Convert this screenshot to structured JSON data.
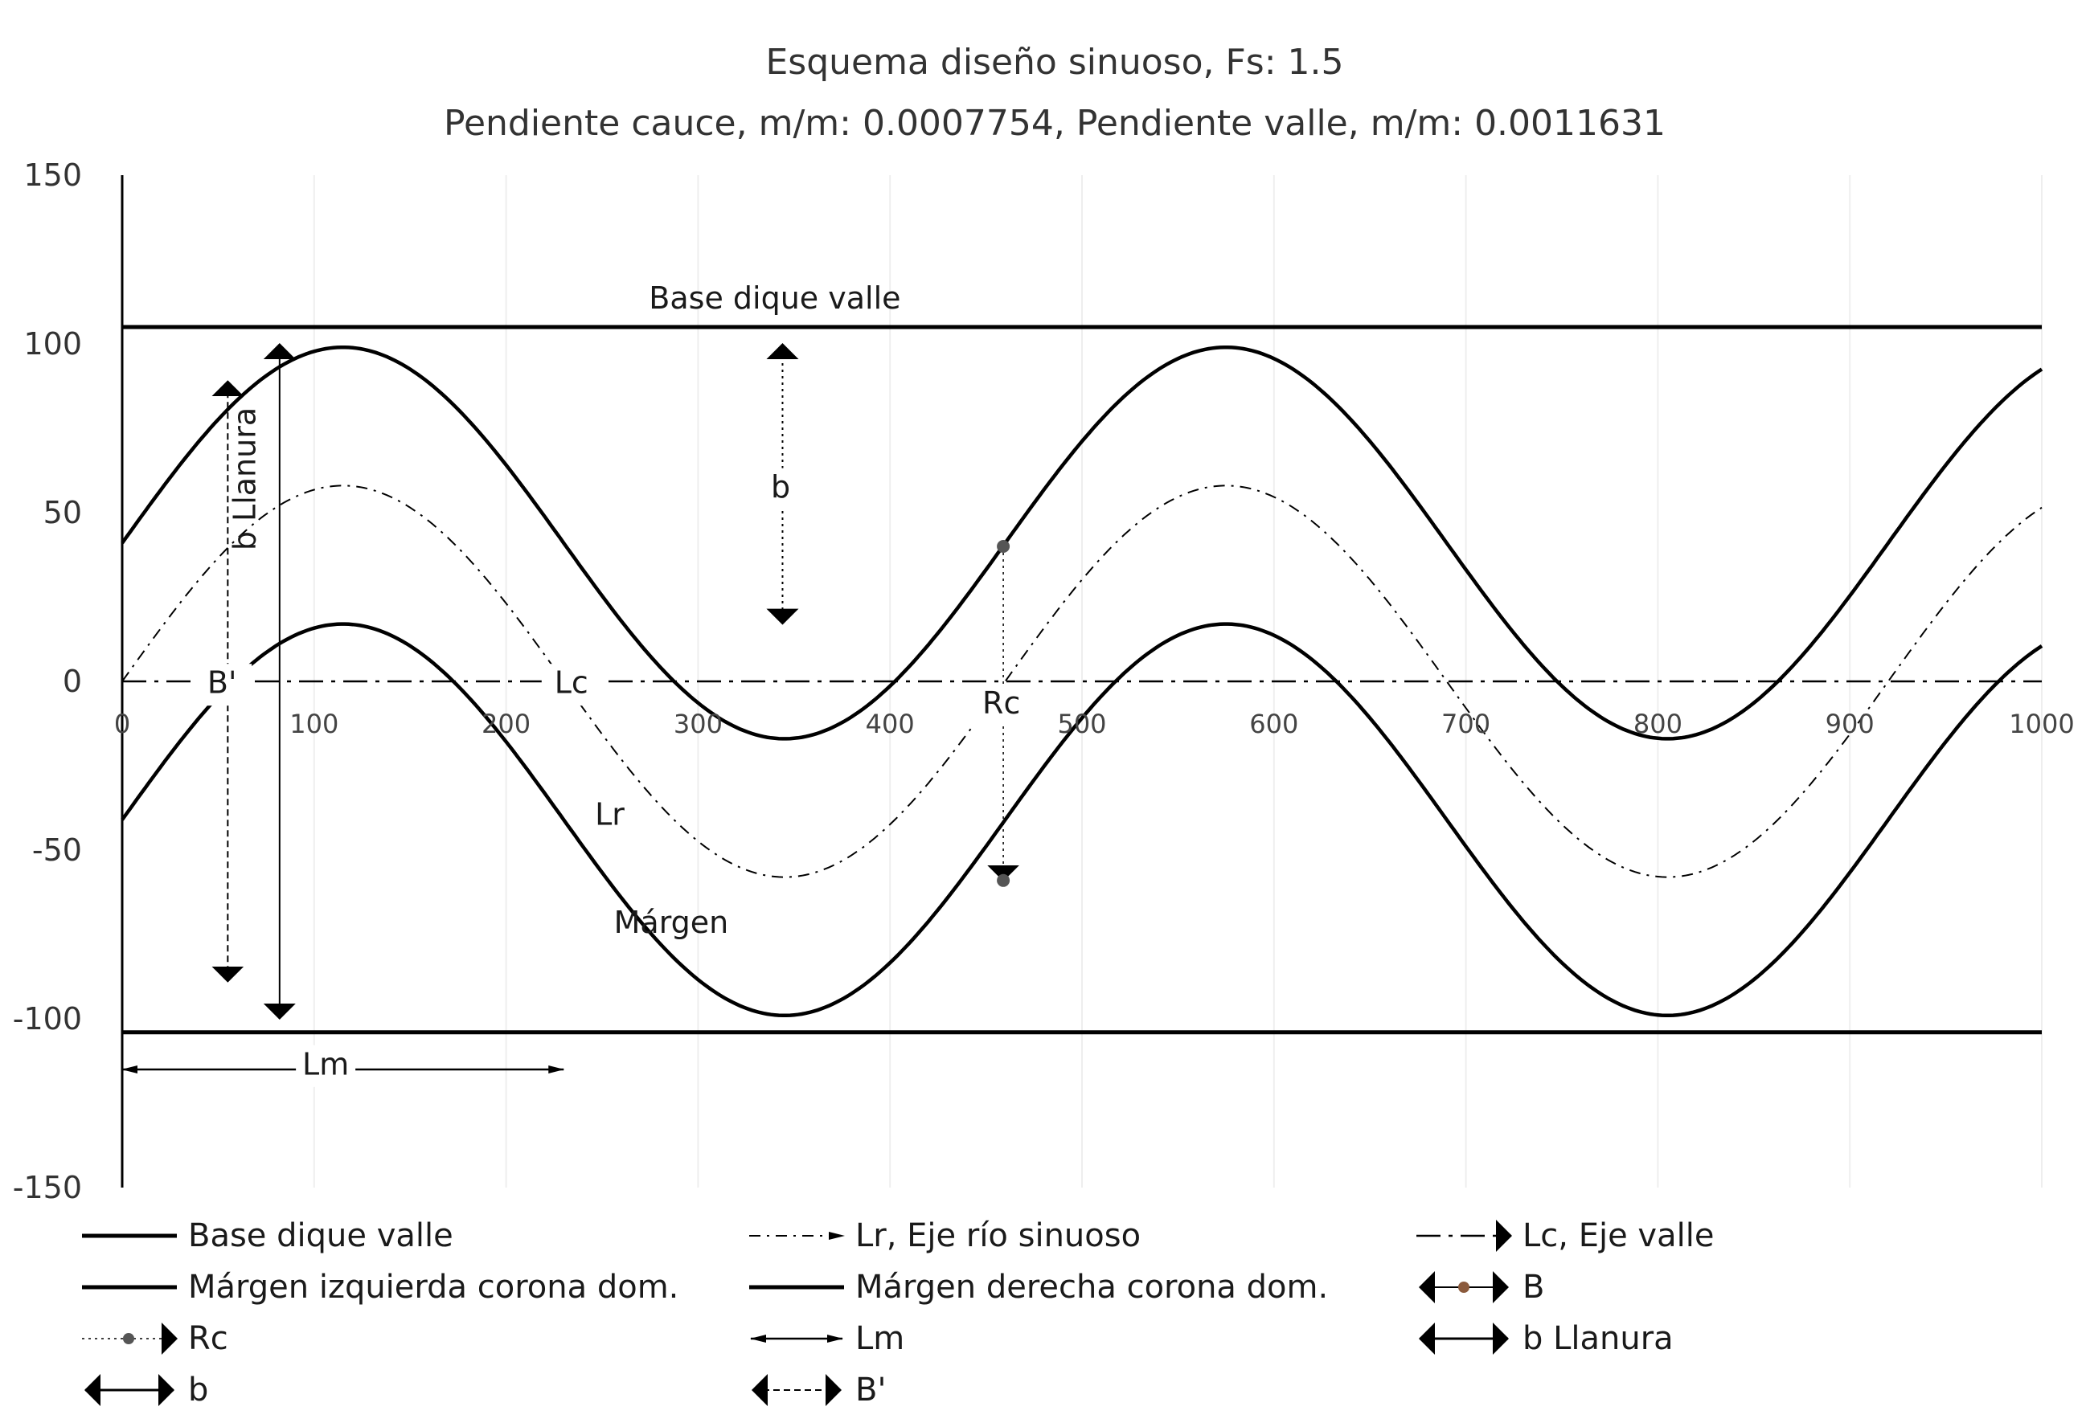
{
  "chart_data": {
    "type": "line",
    "title": "Esquema diseño sinuoso, Fs: 1.5",
    "subtitle": "Pendiente cauce, m/m: 0.0007754, Pendiente valle, m/m: 0.0011631",
    "xlim": [
      0,
      1000
    ],
    "ylim": [
      -150,
      150
    ],
    "x_ticks": [
      "0",
      "100",
      "200",
      "300",
      "400",
      "500",
      "600",
      "700",
      "800",
      "900",
      "1000"
    ],
    "y_ticks": [
      "150",
      "100",
      "50",
      "0",
      "-50",
      "-100",
      "-150"
    ],
    "grid": "vertical",
    "legend_position": "bottom",
    "sinusoid": {
      "wavelength": 460,
      "first_peak_x": 115,
      "margin_left": {
        "center": 41,
        "amplitude": 58
      },
      "centerline": {
        "center": 0,
        "amplitude": 58
      },
      "margin_right": {
        "center": -41,
        "amplitude": 58
      }
    },
    "series": [
      {
        "name": "Base dique valle",
        "style": "solid-thick",
        "x": [
          0,
          1000
        ],
        "y": [
          105,
          105
        ]
      },
      {
        "name": "Base dique valle",
        "style": "solid-thick",
        "x": [
          0,
          1000
        ],
        "y": [
          -104,
          -104
        ]
      },
      {
        "name": "Márgen izquierda corona dom.",
        "style": "solid",
        "curve": "margin_left"
      },
      {
        "name": "Márgen derecha corona dom.",
        "style": "solid",
        "curve": "margin_right"
      },
      {
        "name": "Lr, Eje río sinuoso",
        "style": "dash-dot",
        "curve": "centerline"
      },
      {
        "name": "Lc, Eje valle",
        "style": "dash-dot-long",
        "x": [
          0,
          1000
        ],
        "y": [
          0,
          0
        ]
      }
    ],
    "annotations": [
      {
        "label": "Base dique valle",
        "x": 340,
        "y": 113
      },
      {
        "label": "b Llanura",
        "x": 65,
        "y": 60
      },
      {
        "label": "B'",
        "x": 52,
        "y": -1
      },
      {
        "label": "Lc",
        "x": 234,
        "y": -1
      },
      {
        "label": "Rc",
        "x": 458,
        "y": -7
      },
      {
        "label": "b",
        "x": 343,
        "y": 57
      },
      {
        "label": "Lr",
        "x": 254,
        "y": -40
      },
      {
        "label": "Márgen",
        "x": 286,
        "y": -72
      },
      {
        "label": "Lm",
        "x": 106,
        "y": -114
      }
    ],
    "dimension_lines": [
      {
        "name": "b",
        "x": 344,
        "y_from": 100,
        "y_to": 17
      },
      {
        "name": "b Llanura",
        "x": 82,
        "y_from": 100,
        "y_to": -100
      },
      {
        "name": "B'",
        "x": 55,
        "y_from": 89,
        "y_to": -89
      },
      {
        "name": "Lm",
        "y": -115,
        "x_from": 0,
        "x_to": 230
      },
      {
        "name": "Rc",
        "x": 459,
        "y_from": 40,
        "y_to": -59
      }
    ],
    "legend": [
      {
        "label": "Base dique valle",
        "symbol": "thick-line"
      },
      {
        "label": "Lr, Eje río sinuoso",
        "symbol": "dashdot-arrow"
      },
      {
        "label": "Lc, Eje valle",
        "symbol": "dashdot-arrow-long"
      },
      {
        "label": "Márgen izquierda corona dom.",
        "symbol": "thick-line"
      },
      {
        "label": "Márgen derecha corona dom.",
        "symbol": "thick-line"
      },
      {
        "label": "B",
        "symbol": "double-arrow-dot"
      },
      {
        "label": "Rc",
        "symbol": "dotted-dot-arrow"
      },
      {
        "label": "Lm",
        "symbol": "double-arrow-thin"
      },
      {
        "label": "b Llanura",
        "symbol": "double-arrow-thick"
      },
      {
        "label": "b",
        "symbol": "double-arrow-thick"
      },
      {
        "label": "B'",
        "symbol": "dashdot-double-arrow"
      }
    ],
    "colors": {
      "line": "#000000",
      "grid": "#eeeeee",
      "axis": "#000000",
      "text": "#333333",
      "dot_gray": "#555555",
      "dot_brown": "#8b5a3c"
    }
  }
}
